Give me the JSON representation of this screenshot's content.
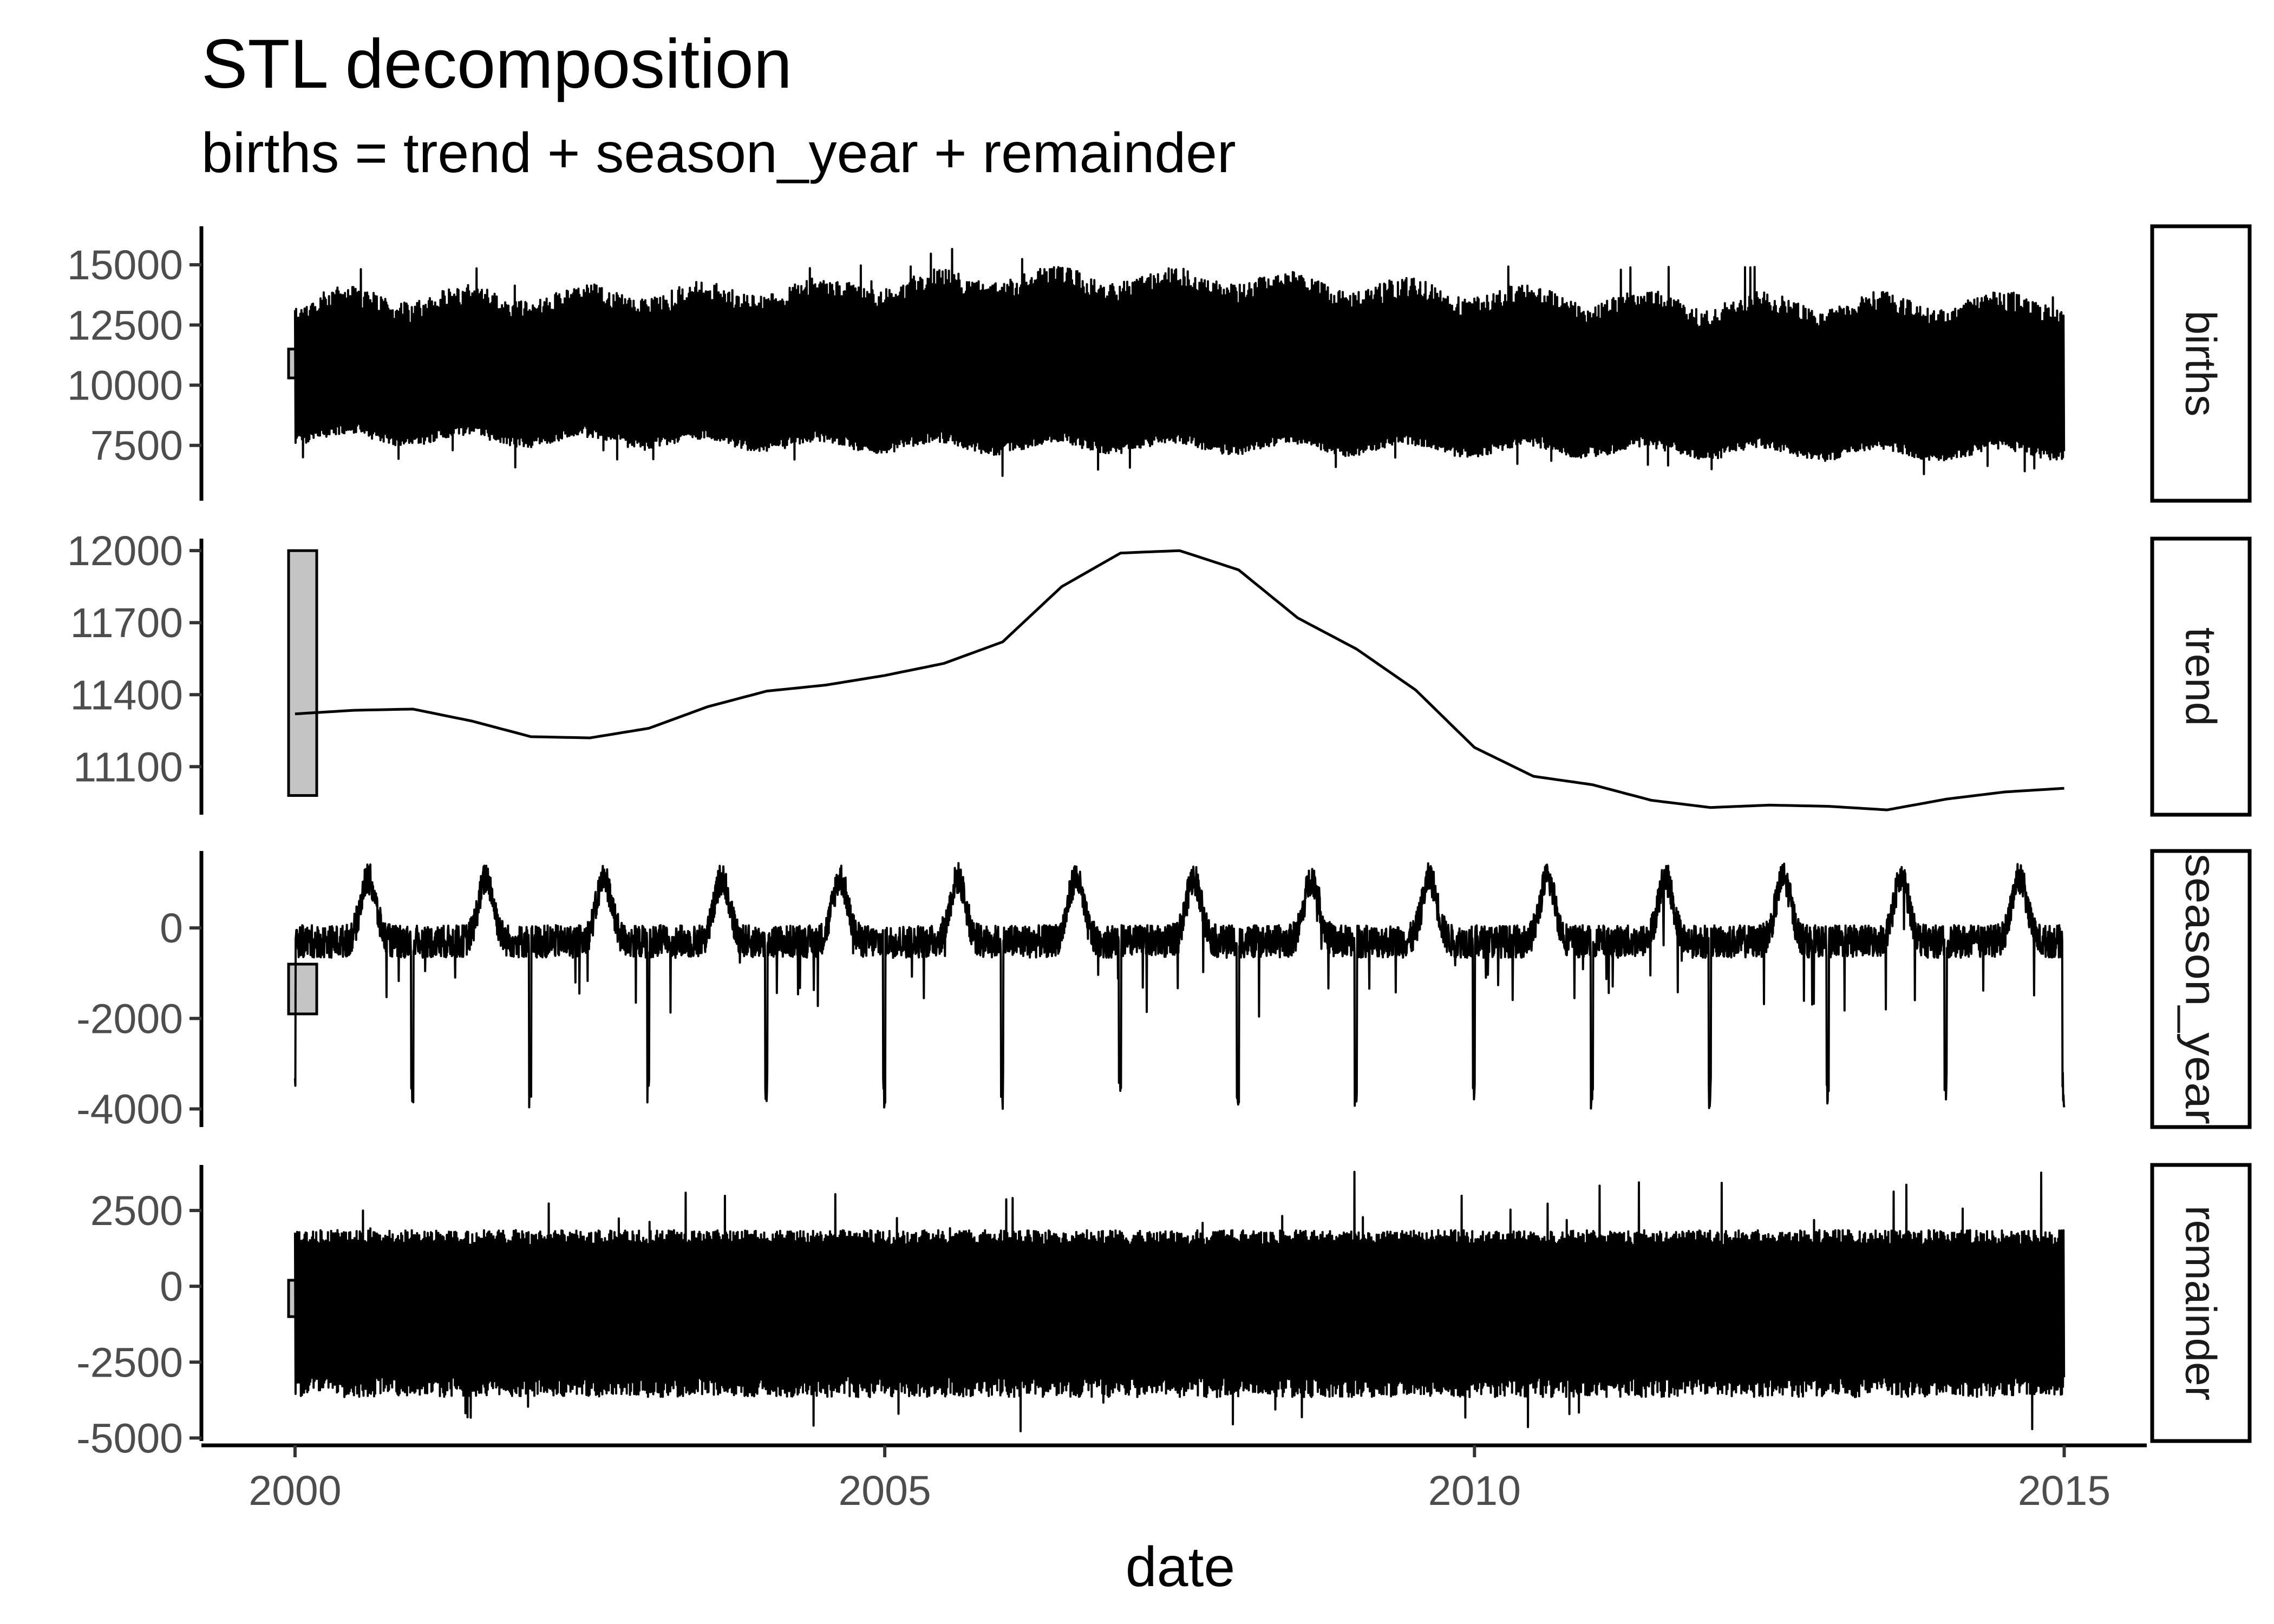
{
  "chart_data": {
    "type": "line",
    "title": "STL decomposition",
    "subtitle": "births = trend + season_year + remainder",
    "xlabel": "date",
    "x_ticks": [
      "2000",
      "2005",
      "2010",
      "2015"
    ],
    "x_range": [
      1999.22,
      2015.7
    ],
    "grid": false,
    "panels": [
      {
        "name": "births",
        "ylim": [
          5200,
          16600
        ],
        "y_ticks": [
          7500,
          10000,
          12500,
          15000
        ],
        "y_tick_labels": [
          "7500",
          "10000",
          "12500",
          "15000"
        ],
        "band": {
          "x": [
            2000,
            2002,
            2004,
            2006,
            2008,
            2010,
            2012,
            2014,
            2015
          ],
          "upper": [
            13300,
            13400,
            13600,
            14200,
            14100,
            13500,
            13100,
            13100,
            13200
          ],
          "lower": [
            8000,
            7900,
            7700,
            7600,
            7600,
            7500,
            7400,
            7300,
            7400
          ]
        },
        "scale_bar": [
          10300,
          11500
        ]
      },
      {
        "name": "trend",
        "ylim": [
          10900,
          12050
        ],
        "y_ticks": [
          11100,
          11400,
          11700,
          12000
        ],
        "y_tick_labels": [
          "11100",
          "11400",
          "11700",
          "12000"
        ],
        "line": {
          "x": [
            2000,
            2000.5,
            2001,
            2001.5,
            2002,
            2002.5,
            2003,
            2003.5,
            2004,
            2004.5,
            2005,
            2005.5,
            2006,
            2006.5,
            2007,
            2007.5,
            2008,
            2008.5,
            2009,
            2009.5,
            2010,
            2010.5,
            2011,
            2011.5,
            2012,
            2012.5,
            2013,
            2013.5,
            2014,
            2014.5,
            2015
          ],
          "y": [
            11320,
            11335,
            11340,
            11290,
            11225,
            11220,
            11260,
            11350,
            11415,
            11440,
            11480,
            11530,
            11620,
            11850,
            11990,
            12000,
            11920,
            11720,
            11590,
            11420,
            11180,
            11060,
            11025,
            10960,
            10930,
            10940,
            10935,
            10920,
            10965,
            10995,
            11010
          ]
        },
        "scale_bar": [
          10980,
          12000
        ]
      },
      {
        "name": "season_year",
        "ylim": [
          -4400,
          1700
        ],
        "y_ticks": [
          -4000,
          -2000,
          0
        ],
        "y_tick_labels": [
          "-4000",
          "-2000",
          "0"
        ],
        "pattern": {
          "baseline": -300,
          "summer_peak": 1100,
          "dec_dip": -4000,
          "noise": 450
        },
        "scale_bar": [
          -1900,
          -800
        ]
      },
      {
        "name": "remainder",
        "ylim": [
          -5100,
          4000
        ],
        "y_ticks": [
          -5000,
          -2500,
          0,
          2500
        ],
        "y_tick_labels": [
          "-5000",
          "-2500",
          "0",
          "2500"
        ],
        "band": {
          "upper": 1600,
          "lower": -3300,
          "spike_max": 3900,
          "spike_min": -4800
        },
        "scale_bar": [
          -1000,
          200
        ]
      }
    ]
  }
}
